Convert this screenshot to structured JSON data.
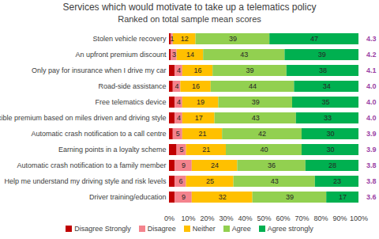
{
  "chart_data": {
    "type": "bar",
    "title": "Services which would motivate to take up a telematics policy",
    "subtitle": "Ranked on total sample mean scores",
    "orientation": "horizontal",
    "stacked": true,
    "data_labels": true,
    "grid": false,
    "legend": "bottom",
    "categories": [
      "Stolen vehicle recovery",
      "An upfront premium discount",
      "Only pay for insurance when I drive my car",
      "Road-side assistance",
      "Free telematics device",
      "Flexible premium based on miles driven and driving style",
      "Automatic crash notification to a call centre",
      "Earning points in a loyalty scheme",
      "Automatic crash notification to a family member",
      "Help me understand my driving style and risk levels",
      "Driver training/education"
    ],
    "series": [
      {
        "name": "Disagree Strongly",
        "color": "#c00000",
        "values": [
          1,
          1,
          3,
          2,
          3,
          3,
          2,
          4,
          3,
          3,
          3
        ],
        "value_labels": [
          null,
          null,
          null,
          null,
          null,
          null,
          null,
          null,
          null,
          null,
          null
        ]
      },
      {
        "name": "Disagree",
        "color": "#f4838d",
        "values": [
          1,
          3,
          4,
          4,
          4,
          4,
          5,
          5,
          9,
          6,
          9
        ]
      },
      {
        "name": "Neither",
        "color": "#ffc000",
        "values": [
          12,
          14,
          16,
          16,
          19,
          17,
          21,
          21,
          24,
          25,
          32
        ]
      },
      {
        "name": "Agree",
        "color": "#92d050",
        "values": [
          39,
          43,
          39,
          44,
          39,
          43,
          42,
          40,
          36,
          43,
          39
        ]
      },
      {
        "name": "Agree strongly",
        "color": "#00b050",
        "values": [
          47,
          39,
          38,
          34,
          35,
          33,
          30,
          30,
          28,
          23,
          17
        ]
      }
    ],
    "xlim": [
      0,
      100
    ],
    "xticks": [
      {
        "value": 0,
        "label": "0%"
      },
      {
        "value": 10,
        "label": "10%"
      },
      {
        "value": 20,
        "label": "20%"
      },
      {
        "value": 30,
        "label": "30%"
      },
      {
        "value": 40,
        "label": "40%"
      },
      {
        "value": 50,
        "label": "50%"
      },
      {
        "value": 60,
        "label": "60%"
      },
      {
        "value": 70,
        "label": "70%"
      },
      {
        "value": 80,
        "label": "80%"
      },
      {
        "value": 90,
        "label": "90%"
      },
      {
        "value": 100,
        "label": "100%"
      }
    ],
    "mean_scores": {
      "color": "#9b3fa4",
      "values": [
        4.3,
        4.2,
        4.1,
        4.0,
        4.0,
        4.0,
        3.9,
        3.9,
        3.8,
        3.8,
        3.6
      ],
      "value_labels": [
        "4.3",
        "4.2",
        "4.1",
        "4.0",
        "4.0",
        "4.0",
        "3.9",
        "3.9",
        "3.8",
        "3.8",
        "3.6"
      ]
    }
  }
}
